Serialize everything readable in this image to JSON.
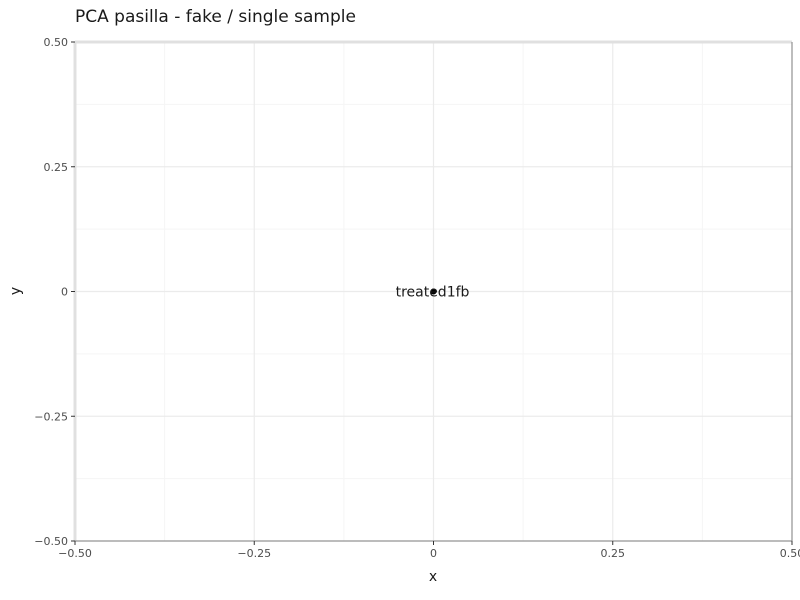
{
  "chart_data": {
    "type": "scatter",
    "title": "PCA pasilla - fake / single sample",
    "xlabel": "x",
    "ylabel": "y",
    "xlim": [
      -0.5,
      0.5
    ],
    "ylim": [
      -0.5,
      0.5
    ],
    "xticks": [
      -0.5,
      -0.25,
      0,
      0.25,
      0.5
    ],
    "xtick_labels": [
      "−0.50",
      "−0.25",
      "0",
      "0.25",
      "0.50"
    ],
    "yticks": [
      -0.5,
      -0.25,
      0,
      0.25,
      0.5
    ],
    "ytick_labels": [
      "−0.50",
      "−0.25",
      "0",
      "0.25",
      "0.50"
    ],
    "grid": true,
    "points": [
      {
        "x": 0,
        "y": 0,
        "label": "treated1fb"
      }
    ],
    "colors": {
      "major_grid": "#ebebeb",
      "minor_grid": "#f5f5f5",
      "point": "#000000",
      "axis": "#7f7f7f"
    }
  }
}
